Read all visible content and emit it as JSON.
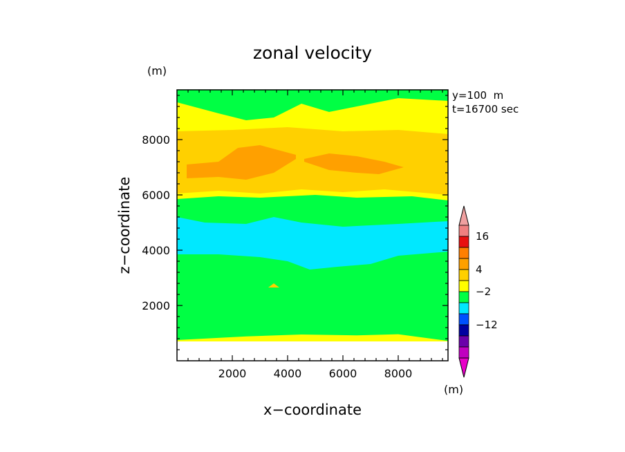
{
  "chart_data": {
    "type": "heatmap",
    "title": "zonal velocity",
    "xlabel": "x−coordinate",
    "ylabel": "z−coordinate",
    "y_unit": "(m)",
    "colorbar_unit": "(m)",
    "annotations": [
      "y=100  m",
      "t=16700 sec"
    ],
    "xlim": [
      0,
      9800
    ],
    "ylim": [
      0,
      9800
    ],
    "x_ticks": [
      2000,
      4000,
      6000,
      8000
    ],
    "y_ticks": [
      2000,
      4000,
      6000,
      8000
    ],
    "x_tick_labels": [
      "2000",
      "4000",
      "6000",
      "8000"
    ],
    "y_tick_labels": [
      "2000",
      "4000",
      "6000",
      "8000"
    ],
    "colorbar": {
      "labels": [
        {
          "text": "16",
          "after_band": 1
        },
        {
          "text": "4",
          "after_band": 4
        },
        {
          "text": "−2",
          "after_band": 6
        },
        {
          "text": "−12",
          "after_band": 9
        }
      ],
      "colors_top_to_bottom": [
        "#f08080",
        "#e81010",
        "#ff7f00",
        "#ffa000",
        "#ffd000",
        "#ffff00",
        "#00ff44",
        "#00e8ff",
        "#0050ff",
        "#0000a0",
        "#6a00aa",
        "#c000c0"
      ],
      "top_arrow_color": "#f0a0a0",
      "bottom_arrow_color": "#e800c8"
    },
    "contour_regions": [
      {
        "level": "yellow",
        "color": "#ffff00",
        "z_bottom": [
          [
            0,
            700
          ],
          [
            9800,
            700
          ]
        ],
        "z_top": [
          [
            0,
            9800
          ],
          [
            9800,
            9800
          ]
        ]
      },
      {
        "level": "green",
        "color": "#00ff44",
        "z_bottom": [
          [
            0,
            750
          ],
          [
            2500,
            880
          ],
          [
            4500,
            950
          ],
          [
            6500,
            920
          ],
          [
            8000,
            960
          ],
          [
            9800,
            720
          ]
        ],
        "z_top": [
          [
            0,
            5850
          ],
          [
            1500,
            5950
          ],
          [
            3000,
            5900
          ],
          [
            5000,
            6000
          ],
          [
            6500,
            5900
          ],
          [
            8500,
            5950
          ],
          [
            9800,
            5800
          ]
        ]
      },
      {
        "level": "green",
        "color": "#00ff44",
        "z_bottom": [
          [
            0,
            9350
          ],
          [
            1500,
            8950
          ],
          [
            2500,
            8700
          ],
          [
            3500,
            8800
          ],
          [
            4500,
            9300
          ],
          [
            5500,
            9000
          ],
          [
            6500,
            9200
          ],
          [
            8000,
            9500
          ],
          [
            9800,
            9400
          ]
        ],
        "z_top": [
          [
            0,
            9800
          ],
          [
            9800,
            9800
          ]
        ]
      },
      {
        "level": "cyan",
        "color": "#00e8ff",
        "z_bottom": [
          [
            0,
            3850
          ],
          [
            1500,
            3850
          ],
          [
            3000,
            3750
          ],
          [
            4000,
            3600
          ],
          [
            4800,
            3300
          ],
          [
            5800,
            3400
          ],
          [
            7000,
            3500
          ],
          [
            8000,
            3800
          ],
          [
            9800,
            3950
          ]
        ],
        "z_top": [
          [
            0,
            5200
          ],
          [
            1000,
            5000
          ],
          [
            2500,
            4950
          ],
          [
            3500,
            5200
          ],
          [
            4500,
            5000
          ],
          [
            6000,
            4850
          ],
          [
            8000,
            4950
          ],
          [
            9800,
            5050
          ]
        ]
      },
      {
        "level": "light-orange",
        "color": "#ffd000",
        "z_bottom": [
          [
            0,
            6050
          ],
          [
            1500,
            6150
          ],
          [
            3000,
            6050
          ],
          [
            4500,
            6200
          ],
          [
            6000,
            6100
          ],
          [
            7500,
            6200
          ],
          [
            9800,
            6000
          ]
        ],
        "z_top": [
          [
            0,
            8300
          ],
          [
            2000,
            8350
          ],
          [
            4000,
            8450
          ],
          [
            6000,
            8300
          ],
          [
            8000,
            8350
          ],
          [
            9800,
            8200
          ]
        ]
      },
      {
        "level": "orange",
        "color": "#ffa000",
        "z_bottom": [
          [
            350,
            6600
          ],
          [
            1500,
            6650
          ],
          [
            2500,
            6550
          ],
          [
            3500,
            6800
          ],
          [
            4300,
            7300
          ]
        ],
        "z_top": [
          [
            350,
            7100
          ],
          [
            1500,
            7200
          ],
          [
            2200,
            7700
          ],
          [
            3000,
            7800
          ],
          [
            4300,
            7450
          ]
        ]
      },
      {
        "level": "orange",
        "color": "#ffa000",
        "z_bottom": [
          [
            4600,
            7200
          ],
          [
            5500,
            6900
          ],
          [
            6500,
            6800
          ],
          [
            7300,
            6750
          ],
          [
            8200,
            7000
          ]
        ],
        "z_top": [
          [
            4600,
            7300
          ],
          [
            5500,
            7500
          ],
          [
            6500,
            7400
          ],
          [
            7500,
            7200
          ],
          [
            8200,
            7000
          ]
        ]
      },
      {
        "level": "light-orange",
        "color": "#ffd000",
        "z_bottom": [
          [
            3300,
            2650
          ],
          [
            3700,
            2650
          ]
        ],
        "z_top": [
          [
            3500,
            2800
          ]
        ]
      }
    ]
  }
}
